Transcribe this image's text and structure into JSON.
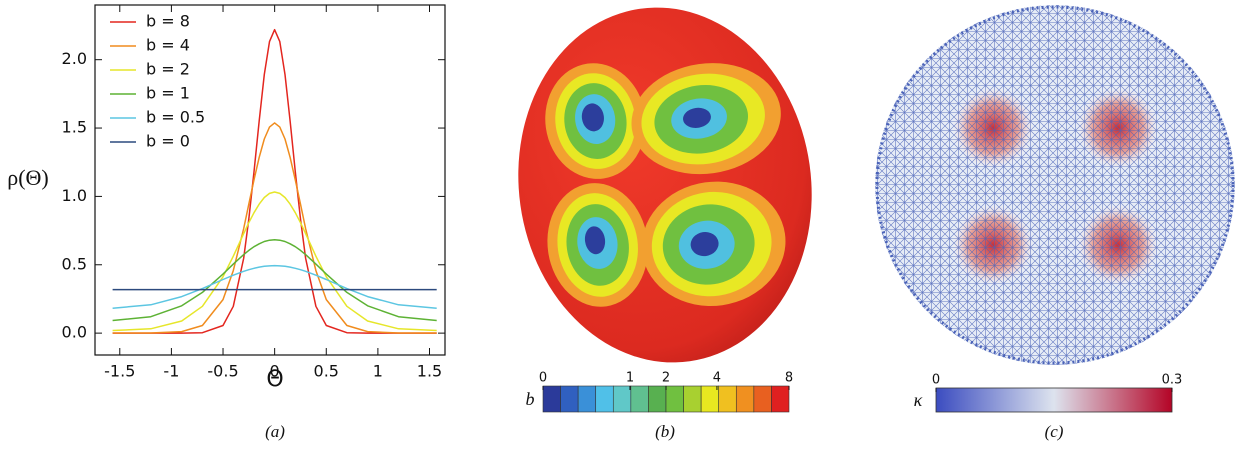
{
  "chart_data": [
    {
      "type": "line",
      "xlabel": "Θ",
      "ylabel": "ρ(Θ)",
      "caption": "(a)",
      "x": [
        -1.57,
        -1.2,
        -0.9,
        -0.7,
        -0.5,
        -0.4,
        -0.3,
        -0.25,
        -0.2,
        -0.15,
        -0.1,
        -0.05,
        0,
        0.05,
        0.1,
        0.15,
        0.2,
        0.25,
        0.3,
        0.4,
        0.5,
        0.7,
        0.9,
        1.2,
        1.57
      ],
      "series": [
        {
          "name": "b = 8",
          "color": "#e3261f",
          "values": [
            0,
            0,
            0,
            0.003,
            0.056,
            0.196,
            0.549,
            0.834,
            1.18,
            1.553,
            1.892,
            2.132,
            2.219,
            2.132,
            1.892,
            1.553,
            1.18,
            0.834,
            0.549,
            0.196,
            0.056,
            0.003,
            0,
            0,
            0
          ]
        },
        {
          "name": "b = 4",
          "color": "#f08c1e",
          "values": [
            0.001,
            0.001,
            0.011,
            0.056,
            0.245,
            0.457,
            0.765,
            0.943,
            1.121,
            1.286,
            1.42,
            1.507,
            1.538,
            1.507,
            1.42,
            1.286,
            1.121,
            0.943,
            0.765,
            0.457,
            0.245,
            0.056,
            0.011,
            0.001,
            0.001
          ]
        },
        {
          "name": "b = 2",
          "color": "#e6e62a",
          "values": [
            0.019,
            0.032,
            0.089,
            0.196,
            0.412,
            0.563,
            0.728,
            0.808,
            0.881,
            0.944,
            0.992,
            1.022,
            1.032,
            1.022,
            0.992,
            0.944,
            0.881,
            0.808,
            0.728,
            0.563,
            0.412,
            0.196,
            0.089,
            0.032,
            0.019
          ]
        },
        {
          "name": "b = 1",
          "color": "#5db234",
          "values": [
            0.092,
            0.12,
            0.2,
            0.298,
            0.432,
            0.505,
            0.574,
            0.605,
            0.632,
            0.653,
            0.67,
            0.68,
            0.683,
            0.68,
            0.67,
            0.653,
            0.632,
            0.605,
            0.574,
            0.505,
            0.432,
            0.298,
            0.2,
            0.12,
            0.092
          ]
        },
        {
          "name": "b = 0.5",
          "color": "#5cc6e2",
          "values": [
            0.182,
            0.207,
            0.267,
            0.326,
            0.392,
            0.424,
            0.452,
            0.464,
            0.474,
            0.483,
            0.489,
            0.492,
            0.494,
            0.492,
            0.489,
            0.483,
            0.474,
            0.464,
            0.452,
            0.424,
            0.392,
            0.326,
            0.267,
            0.207,
            0.182
          ]
        },
        {
          "name": "b = 0",
          "color": "#2c4a7e",
          "values": [
            0.318,
            0.318,
            0.318,
            0.318,
            0.318,
            0.318,
            0.318,
            0.318,
            0.318,
            0.318,
            0.318,
            0.318,
            0.318,
            0.318,
            0.318,
            0.318,
            0.318,
            0.318,
            0.318,
            0.318,
            0.318,
            0.318,
            0.318,
            0.318,
            0.318
          ]
        }
      ],
      "xlim": [
        -1.74,
        1.65
      ],
      "ylim": [
        -0.16,
        2.4
      ],
      "xticks": [
        -1.5,
        -1,
        -0.5,
        0,
        0.5,
        1,
        1.5
      ],
      "yticks": [
        {
          "value": 0,
          "label": "0.0"
        },
        0.5,
        {
          "value": 1,
          "label": "1.0"
        },
        1.5,
        {
          "value": 2,
          "label": "2.0"
        }
      ],
      "legend": "upper left"
    },
    {
      "type": "colorbar",
      "label": "b",
      "caption": "(b)",
      "clim": [
        0,
        8
      ],
      "scale": "sqrt",
      "ticks": [
        0,
        1,
        2,
        4,
        8
      ],
      "discrete": true
    },
    {
      "type": "colorbar",
      "label": "κ",
      "caption": "(c)",
      "clim": [
        0,
        0.3
      ],
      "scale": "linear",
      "ticks": [
        0,
        0.3
      ],
      "discrete": false
    }
  ]
}
